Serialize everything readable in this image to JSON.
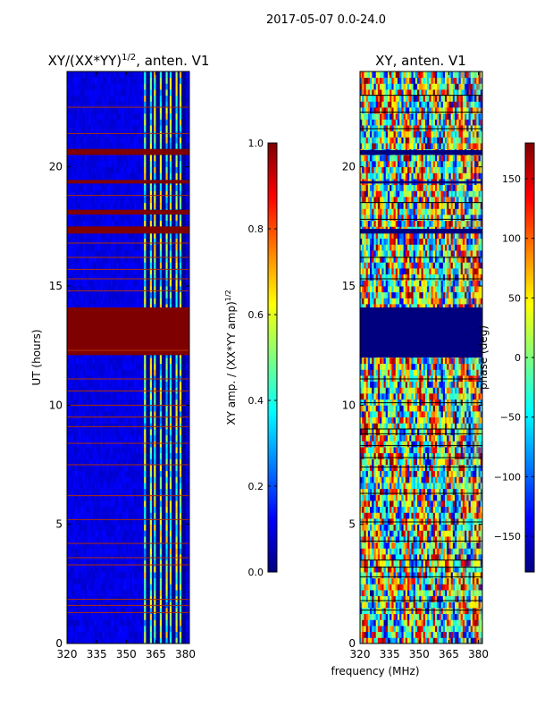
{
  "figure_title": "2017-05-07 0.0-24.0",
  "xlabel": "frequency (MHz)",
  "colors": {
    "jet": [
      "#00007f",
      "#0000ff",
      "#007fff",
      "#00ffff",
      "#7fff7f",
      "#ffff00",
      "#ff7f00",
      "#ff0000",
      "#7f0000"
    ],
    "axis": "#000000",
    "band": "#7f0000"
  },
  "chart_data": [
    {
      "type": "heatmap",
      "title_main": "XY/(XX*YY)",
      "title_exp": "1/2",
      "title_rest": ", anten. V1",
      "xlabel": "",
      "ylabel": "UT (hours)",
      "xlim": [
        320,
        382
      ],
      "ylim": [
        0,
        24
      ],
      "x_ticks": [
        320,
        335,
        350,
        365,
        380
      ],
      "x_tick_labels": [
        "320",
        "335",
        "350",
        "365",
        "380"
      ],
      "y_ticks": [
        0,
        5,
        10,
        15,
        20
      ],
      "y_tick_labels": [
        "0",
        "5",
        "10",
        "15",
        "20"
      ],
      "background_value": 0.1,
      "active_band_mhz": [
        359,
        380
      ],
      "active_channels_mhz": [
        361,
        363.5,
        366,
        369,
        371.5,
        374,
        376.5,
        379
      ],
      "flag_bands_ut": [
        [
          12.1,
          14.1
        ],
        [
          17.2,
          17.5
        ],
        [
          20.5,
          20.75
        ],
        [
          19.3,
          19.45
        ],
        [
          18.0,
          18.2
        ]
      ],
      "flag_lines_ut": [
        1.3,
        1.6,
        1.85,
        3.3,
        3.6,
        4.2,
        5.2,
        6.2,
        7.5,
        8.4,
        9.1,
        9.5,
        10.0,
        10.6,
        11.1,
        12.3,
        14.8,
        15.3,
        15.7,
        16.2,
        16.8,
        18.8,
        21.4,
        22.5
      ],
      "colorbar": {
        "label_main": "XY amp. / (XX*YY amp)",
        "label_exp": "1/2",
        "vmin": 0.0,
        "vmax": 1.0,
        "ticks": [
          0.0,
          0.2,
          0.4,
          0.6,
          0.8,
          1.0
        ],
        "tick_labels": [
          "0.0",
          "0.2",
          "0.4",
          "0.6",
          "0.8",
          "1.0"
        ]
      }
    },
    {
      "type": "heatmap",
      "title": "XY, anten. V1",
      "xlabel": "frequency (MHz)",
      "ylabel": "",
      "xlim": [
        320,
        382
      ],
      "ylim": [
        0,
        24
      ],
      "x_ticks": [
        320,
        335,
        350,
        365,
        380
      ],
      "x_tick_labels": [
        "320",
        "335",
        "350",
        "365",
        "380"
      ],
      "y_ticks": [
        0,
        5,
        10,
        15,
        20
      ],
      "y_tick_labels": [
        "0",
        "5",
        "10",
        "15",
        "20"
      ],
      "flag_bands_ut": [
        [
          12.0,
          14.1
        ],
        [
          17.2,
          17.4
        ],
        [
          20.5,
          20.7
        ],
        [
          19.3,
          19.4
        ]
      ],
      "flag_lines_ut": [
        1.4,
        1.8,
        2.8,
        3.2,
        3.5,
        4.3,
        5.1,
        6.3,
        7.4,
        7.8,
        8.3,
        8.8,
        9.0,
        10.1,
        11.1,
        15.3,
        16.2,
        17.8,
        18.5,
        21.6,
        22.3,
        23.0
      ],
      "colorbar": {
        "label": "phase (deg)",
        "vmin": -180,
        "vmax": 180,
        "ticks": [
          -150,
          -100,
          -50,
          0,
          50,
          100,
          150
        ],
        "tick_labels": [
          "−150",
          "−100",
          "−50",
          "0",
          "50",
          "100",
          "150"
        ]
      }
    }
  ]
}
